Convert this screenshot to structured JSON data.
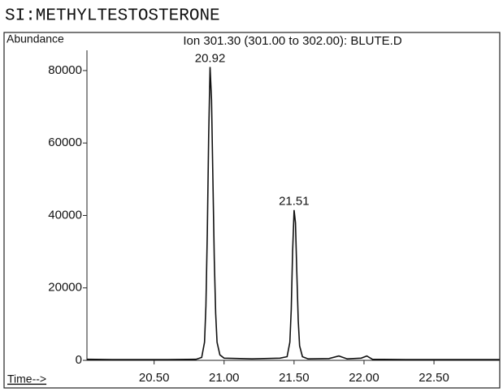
{
  "chart_data": {
    "type": "line",
    "title": "SI:METHYLTESTOSTERONE",
    "subtitle": "Ion 301.30 (301.00 to 302.00): BLUTE.D",
    "y_label": "Abundance",
    "x_label": "Time-->",
    "x": [
      20.02,
      20.2,
      20.4,
      20.6,
      20.8,
      20.84,
      20.86,
      20.87,
      20.88,
      20.89,
      20.9,
      20.91,
      20.92,
      20.93,
      20.94,
      20.95,
      20.97,
      21.0,
      21.2,
      21.4,
      21.45,
      21.47,
      21.48,
      21.49,
      21.5,
      21.51,
      21.52,
      21.53,
      21.54,
      21.56,
      21.6,
      21.75,
      21.82,
      21.88,
      21.98,
      22.02,
      22.06,
      22.3,
      22.6,
      22.97
    ],
    "series": [
      {
        "name": "Ion 301.30",
        "color": "#111111",
        "values": [
          300,
          200,
          200,
          200,
          300,
          800,
          5000,
          15000,
          35000,
          62000,
          81000,
          72000,
          50000,
          28000,
          13000,
          5000,
          1500,
          600,
          400,
          600,
          1000,
          5000,
          14000,
          30000,
          41500,
          38000,
          24000,
          11000,
          4000,
          1000,
          400,
          500,
          1200,
          400,
          600,
          1200,
          300,
          200,
          200,
          200
        ]
      }
    ],
    "annotations": [
      {
        "text": "20.92",
        "x": 20.9,
        "y": 81000
      },
      {
        "text": "21.51",
        "x": 21.5,
        "y": 41500
      }
    ],
    "xlim": [
      20.02,
      22.97
    ],
    "ylim": [
      0,
      82000
    ],
    "xticks": [
      {
        "value": 20.5,
        "label": "20.50"
      },
      {
        "value": 21,
        "label": "21.00"
      },
      {
        "value": 21.5,
        "label": "21.50"
      },
      {
        "value": 22,
        "label": "22.00"
      },
      {
        "value": 22.5,
        "label": "22.50"
      }
    ],
    "yticks": [
      0,
      20000,
      40000,
      60000,
      80000
    ]
  }
}
